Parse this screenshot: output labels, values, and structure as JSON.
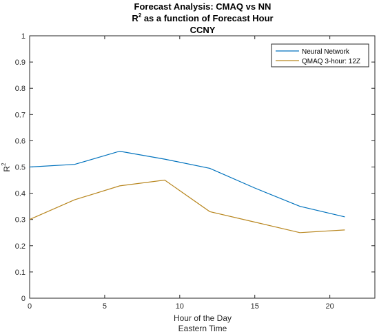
{
  "chart_data": {
    "type": "line",
    "title": "Forecast Analysis: CMAQ vs NN",
    "subtitle_main": "R",
    "subtitle_sup": "2",
    "subtitle_rest": " as a function of Forecast Hour",
    "subtitle2": "CCNY",
    "xlabel": "Hour of the Day",
    "xlabel2": "Eastern Time",
    "ylabel_main": "R",
    "ylabel_sup": "2",
    "xlim": [
      0,
      23
    ],
    "ylim": [
      0,
      1
    ],
    "xticks": [
      0,
      5,
      10,
      15,
      20
    ],
    "yticks": [
      0,
      0.1,
      0.2,
      0.3,
      0.4,
      0.5,
      0.6,
      0.7,
      0.8,
      0.9,
      1
    ],
    "ytick_labels": [
      "0",
      "0.1",
      "0.2",
      "0.3",
      "0.4",
      "0.5",
      "0.6",
      "0.7",
      "0.8",
      "0.9",
      "1"
    ],
    "grid": false,
    "legend_position": "top-right",
    "series": [
      {
        "name": "Neural Network",
        "color": "#0072BD",
        "x": [
          0,
          3,
          6,
          9,
          12,
          15,
          18,
          21
        ],
        "y": [
          0.5,
          0.51,
          0.56,
          0.53,
          0.495,
          0.42,
          0.35,
          0.31
        ]
      },
      {
        "name": "QMAQ 3-hour: 12Z",
        "color": "#D95319",
        "line_color": "#B8861E",
        "x": [
          0,
          3,
          6,
          9,
          12,
          15,
          18,
          21
        ],
        "y": [
          0.3,
          0.375,
          0.428,
          0.45,
          0.33,
          0.29,
          0.25,
          0.26
        ]
      }
    ]
  }
}
